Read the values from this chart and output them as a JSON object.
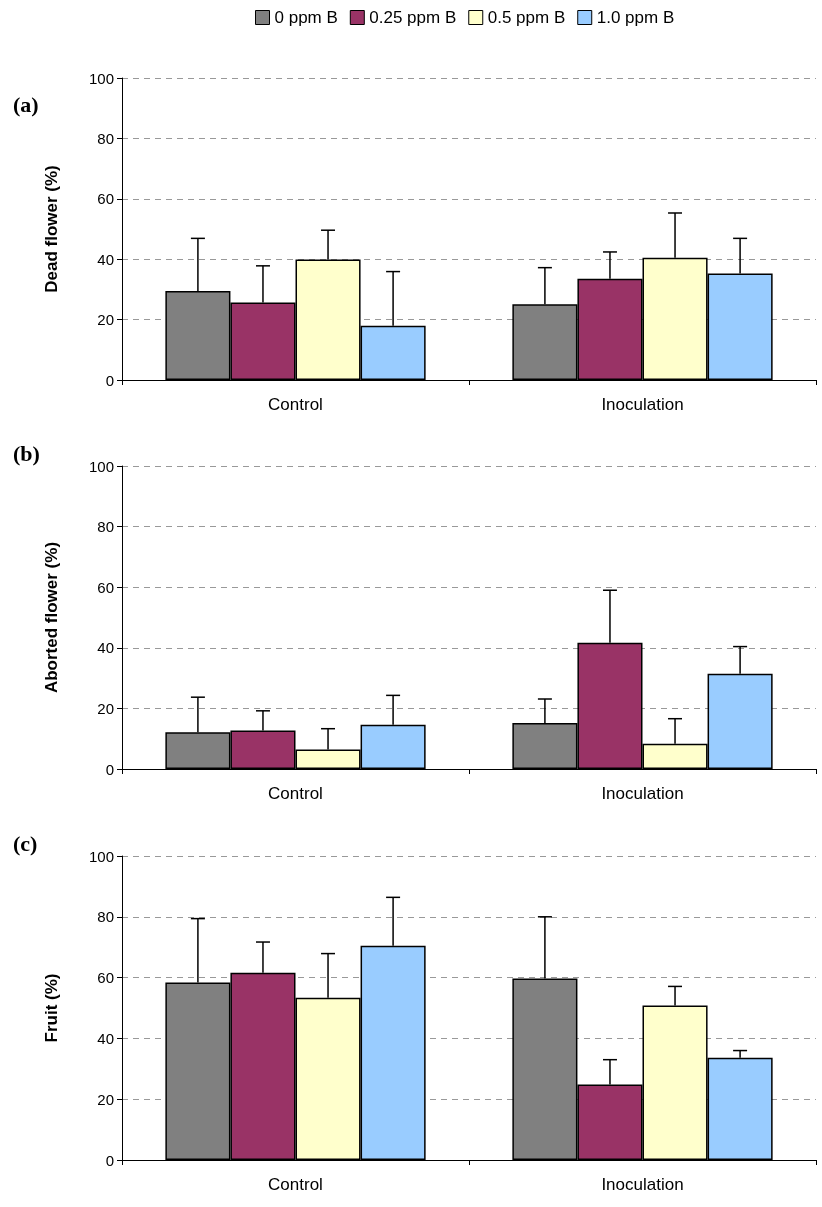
{
  "chart_data": [
    {
      "type": "bar",
      "title": "(a)",
      "ylabel": "Dead flower (%)",
      "categories": [
        "Control",
        "Inoculation"
      ],
      "series": [
        {
          "name": "0 ppm B",
          "color": "#808080",
          "values": [
            29.5,
            25.1
          ],
          "errors": [
            [
              29.5,
              46.9
            ],
            [
              25.1,
              37.2
            ]
          ]
        },
        {
          "name": "0.25 ppm B",
          "color": "#993366",
          "values": [
            25.7,
            33.5
          ],
          "errors": [
            [
              25.7,
              37.8
            ],
            [
              33.5,
              42.4
            ]
          ]
        },
        {
          "name": "0.5 ppm B",
          "color": "#ffffcc",
          "values": [
            39.9,
            40.5
          ],
          "errors": [
            [
              39.9,
              49.6
            ],
            [
              40.5,
              55.3
            ]
          ]
        },
        {
          "name": "1.0 ppm B",
          "color": "#99ccff",
          "values": [
            18.0,
            35.3
          ],
          "errors": [
            [
              18.0,
              35.9
            ],
            [
              35.3,
              46.9
            ]
          ]
        }
      ],
      "ylim": [
        0,
        100
      ],
      "yticks": [
        0,
        20,
        40,
        60,
        80,
        100
      ],
      "grid": "y",
      "legend": "top"
    },
    {
      "type": "bar",
      "title": "(b)",
      "ylabel": "Aborted flower (%)",
      "categories": [
        "Control",
        "Inoculation"
      ],
      "series": [
        {
          "color": "#808080",
          "values": [
            12.1,
            15.2
          ],
          "errors": [
            [
              12.1,
              23.7
            ],
            [
              15.2,
              23.1
            ]
          ]
        },
        {
          "color": "#993366",
          "values": [
            12.7,
            41.7
          ],
          "errors": [
            [
              12.7,
              19.2
            ],
            [
              41.7,
              59.0
            ]
          ]
        },
        {
          "color": "#ffffcc",
          "values": [
            6.4,
            8.3
          ],
          "errors": [
            [
              6.4,
              13.3
            ],
            [
              8.3,
              16.6
            ]
          ]
        },
        {
          "color": "#99ccff",
          "values": [
            14.6,
            31.4
          ],
          "errors": [
            [
              14.6,
              24.3
            ],
            [
              31.4,
              40.4
            ]
          ]
        }
      ],
      "ylim": [
        0,
        100
      ],
      "yticks": [
        0,
        20,
        40,
        60,
        80,
        100
      ],
      "grid": "y"
    },
    {
      "type": "bar",
      "title": "(c)",
      "ylabel": "Fruit (%)",
      "categories": [
        "Control",
        "Inoculation"
      ],
      "series": [
        {
          "color": "#808080",
          "values": [
            58.4,
            59.7
          ],
          "errors": [
            [
              58.4,
              79.4
            ],
            [
              59.7,
              80.0
            ]
          ]
        },
        {
          "color": "#993366",
          "values": [
            61.6,
            24.8
          ],
          "errors": [
            [
              61.6,
              71.7
            ],
            [
              24.8,
              33.0
            ]
          ]
        },
        {
          "color": "#ffffcc",
          "values": [
            53.4,
            50.8
          ],
          "errors": [
            [
              53.4,
              67.9
            ],
            [
              50.8,
              57.1
            ]
          ]
        },
        {
          "color": "#99ccff",
          "values": [
            70.5,
            33.6
          ],
          "errors": [
            [
              70.5,
              86.4
            ],
            [
              33.6,
              36.0
            ]
          ]
        }
      ],
      "ylim": [
        0,
        100
      ],
      "yticks": [
        0,
        20,
        40,
        60,
        80,
        100
      ],
      "grid": "y"
    }
  ]
}
